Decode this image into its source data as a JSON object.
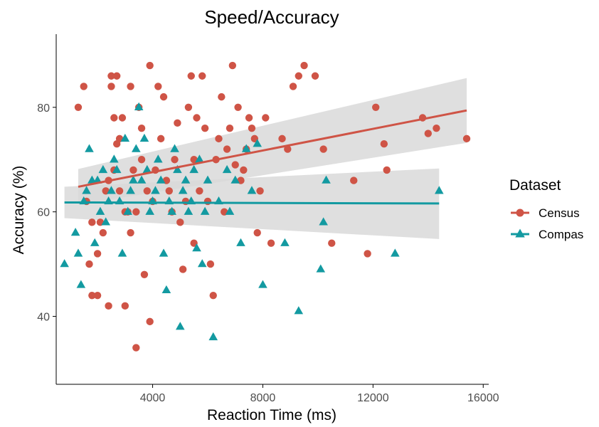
{
  "chart_data": {
    "type": "scatter",
    "title": "Speed/Accuracy",
    "xlabel": "Reaction Time (ms)",
    "ylabel": "Accuracy (%)",
    "xlim": [
      500,
      16200
    ],
    "ylim": [
      27,
      94
    ],
    "x_ticks": [
      4000,
      8000,
      12000,
      16000
    ],
    "y_ticks": [
      40,
      60,
      80
    ],
    "grid": false,
    "legend": {
      "title": "Dataset",
      "placement": "right"
    },
    "series": [
      {
        "name": "Census",
        "color": "#cf5446",
        "marker": "circle",
        "points": [
          [
            1300,
            80
          ],
          [
            1500,
            84
          ],
          [
            1600,
            62
          ],
          [
            1700,
            50
          ],
          [
            1800,
            58
          ],
          [
            1800,
            44
          ],
          [
            2000,
            44
          ],
          [
            2000,
            52
          ],
          [
            2100,
            58
          ],
          [
            2200,
            56
          ],
          [
            2300,
            64
          ],
          [
            2400,
            66
          ],
          [
            2400,
            42
          ],
          [
            2500,
            84
          ],
          [
            2500,
            86
          ],
          [
            2600,
            78
          ],
          [
            2600,
            68
          ],
          [
            2700,
            73
          ],
          [
            2700,
            86
          ],
          [
            2800,
            74
          ],
          [
            2800,
            64
          ],
          [
            2900,
            78
          ],
          [
            3000,
            60
          ],
          [
            3000,
            42
          ],
          [
            3100,
            60
          ],
          [
            3200,
            84
          ],
          [
            3200,
            56
          ],
          [
            3300,
            68
          ],
          [
            3400,
            34
          ],
          [
            3400,
            60
          ],
          [
            3500,
            80
          ],
          [
            3600,
            76
          ],
          [
            3600,
            70
          ],
          [
            3700,
            48
          ],
          [
            3800,
            64
          ],
          [
            3900,
            88
          ],
          [
            3900,
            39
          ],
          [
            4000,
            62
          ],
          [
            4100,
            68
          ],
          [
            4200,
            84
          ],
          [
            4300,
            74
          ],
          [
            4400,
            82
          ],
          [
            4500,
            66
          ],
          [
            4600,
            64
          ],
          [
            4700,
            60
          ],
          [
            4800,
            70
          ],
          [
            4900,
            77
          ],
          [
            5000,
            58
          ],
          [
            5100,
            49
          ],
          [
            5200,
            62
          ],
          [
            5300,
            80
          ],
          [
            5400,
            86
          ],
          [
            5500,
            70
          ],
          [
            5500,
            54
          ],
          [
            5600,
            78
          ],
          [
            5700,
            64
          ],
          [
            5800,
            86
          ],
          [
            5900,
            76
          ],
          [
            6000,
            62
          ],
          [
            6100,
            50
          ],
          [
            6200,
            44
          ],
          [
            6300,
            70
          ],
          [
            6400,
            74
          ],
          [
            6500,
            82
          ],
          [
            6600,
            60
          ],
          [
            6700,
            72
          ],
          [
            6800,
            76
          ],
          [
            6900,
            88
          ],
          [
            7000,
            69
          ],
          [
            7100,
            80
          ],
          [
            7200,
            66
          ],
          [
            7300,
            68
          ],
          [
            7400,
            72
          ],
          [
            7500,
            78
          ],
          [
            7600,
            76
          ],
          [
            7700,
            74
          ],
          [
            7800,
            56
          ],
          [
            7900,
            64
          ],
          [
            8100,
            78
          ],
          [
            8300,
            54
          ],
          [
            8700,
            74
          ],
          [
            8900,
            72
          ],
          [
            9100,
            84
          ],
          [
            9300,
            86
          ],
          [
            9500,
            88
          ],
          [
            9900,
            86
          ],
          [
            10200,
            72
          ],
          [
            10500,
            54
          ],
          [
            11300,
            66
          ],
          [
            11800,
            52
          ],
          [
            12100,
            80
          ],
          [
            12400,
            73
          ],
          [
            12500,
            68
          ],
          [
            13800,
            78
          ],
          [
            14000,
            75
          ],
          [
            14300,
            76
          ],
          [
            15400,
            74
          ]
        ]
      },
      {
        "name": "Compas",
        "color": "#139aa1",
        "marker": "triangle",
        "points": [
          [
            800,
            50
          ],
          [
            1200,
            56
          ],
          [
            1300,
            52
          ],
          [
            1400,
            46
          ],
          [
            1500,
            62
          ],
          [
            1600,
            64
          ],
          [
            1700,
            72
          ],
          [
            1800,
            66
          ],
          [
            1900,
            54
          ],
          [
            2000,
            66
          ],
          [
            2100,
            60
          ],
          [
            2200,
            68
          ],
          [
            2300,
            58
          ],
          [
            2400,
            62
          ],
          [
            2500,
            64
          ],
          [
            2600,
            70
          ],
          [
            2700,
            68
          ],
          [
            2800,
            62
          ],
          [
            2900,
            52
          ],
          [
            3000,
            74
          ],
          [
            3100,
            60
          ],
          [
            3200,
            64
          ],
          [
            3300,
            66
          ],
          [
            3400,
            72
          ],
          [
            3500,
            80
          ],
          [
            3600,
            66
          ],
          [
            3700,
            74
          ],
          [
            3800,
            68
          ],
          [
            3900,
            60
          ],
          [
            4000,
            62
          ],
          [
            4100,
            64
          ],
          [
            4200,
            70
          ],
          [
            4300,
            66
          ],
          [
            4400,
            52
          ],
          [
            4500,
            45
          ],
          [
            4600,
            62
          ],
          [
            4700,
            60
          ],
          [
            4800,
            72
          ],
          [
            4900,
            68
          ],
          [
            5000,
            38
          ],
          [
            5100,
            64
          ],
          [
            5200,
            66
          ],
          [
            5300,
            60
          ],
          [
            5400,
            62
          ],
          [
            5500,
            68
          ],
          [
            5600,
            53
          ],
          [
            5700,
            70
          ],
          [
            5800,
            50
          ],
          [
            5900,
            60
          ],
          [
            6000,
            66
          ],
          [
            6200,
            36
          ],
          [
            6400,
            62
          ],
          [
            6700,
            68
          ],
          [
            6800,
            60
          ],
          [
            7000,
            66
          ],
          [
            7200,
            54
          ],
          [
            7400,
            72
          ],
          [
            7600,
            64
          ],
          [
            7800,
            73
          ],
          [
            8000,
            46
          ],
          [
            8800,
            54
          ],
          [
            9300,
            41
          ],
          [
            10100,
            49
          ],
          [
            10200,
            58
          ],
          [
            10300,
            66
          ],
          [
            12800,
            52
          ],
          [
            14400,
            64
          ]
        ]
      }
    ],
    "trend_lines": [
      {
        "series": "Census",
        "x": [
          1300,
          15400
        ],
        "y": [
          64.8,
          79.4
        ],
        "ci_lower": [
          61.4,
          73.2
        ],
        "ci_upper": [
          68.2,
          85.6
        ],
        "ci_color": "#d9d9d9"
      },
      {
        "series": "Compas",
        "x": [
          800,
          14400
        ],
        "y": [
          61.8,
          61.6
        ],
        "ci_lower": [
          58.8,
          54.8
        ],
        "ci_upper": [
          64.8,
          68.3
        ],
        "ci_color": "#d9d9d9"
      }
    ]
  }
}
